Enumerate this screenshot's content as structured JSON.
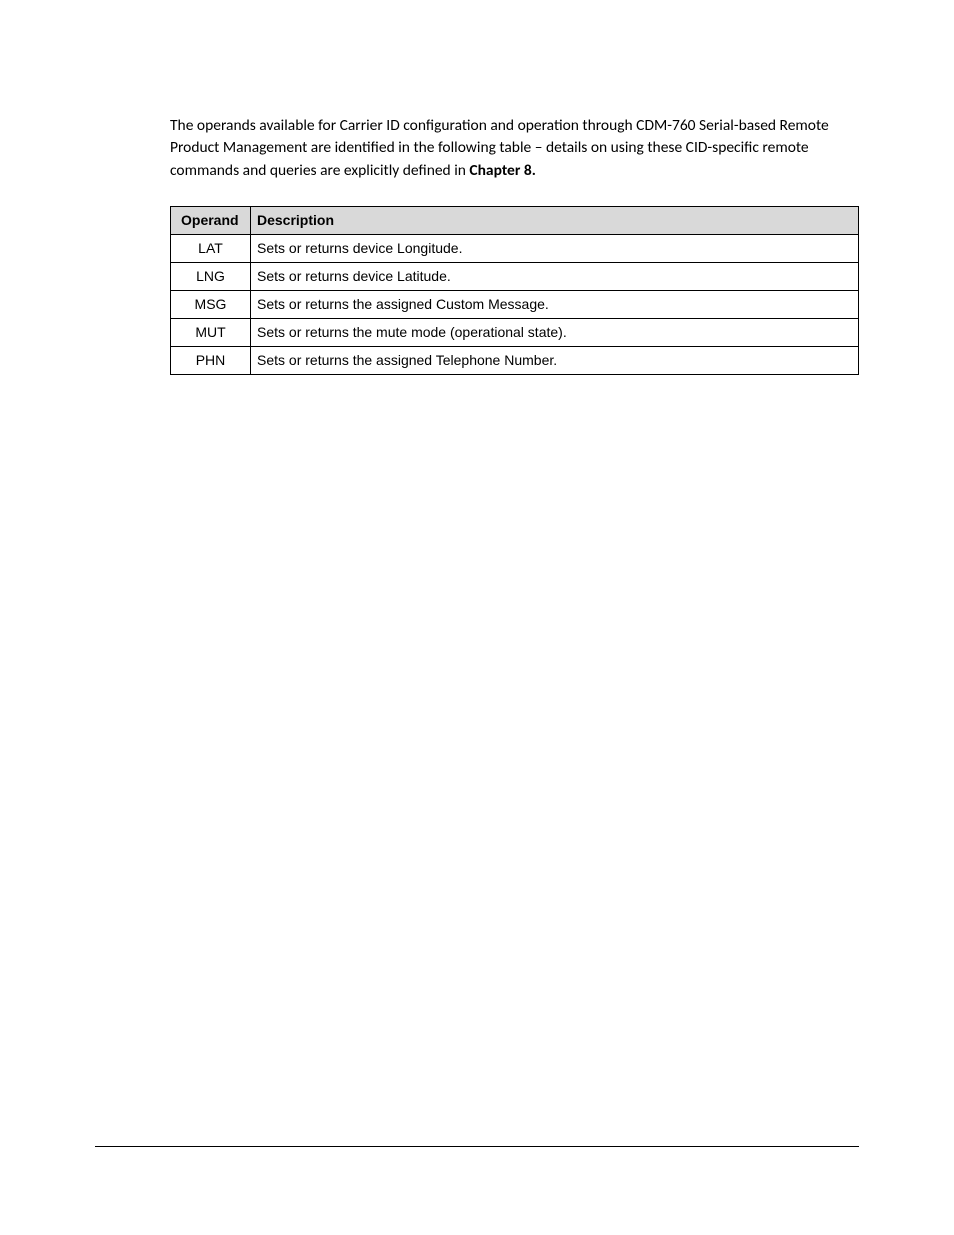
{
  "paragraph": {
    "text_part1": "The operands available for Carrier ID configuration and operation through CDM-760 Serial-based Remote Product Management are identified in the following table – details on using these CID-specific remote commands and queries are explicitly defined in ",
    "bold_part": "Chapter 8."
  },
  "table": {
    "header": {
      "operand": "Operand",
      "description": "Description"
    },
    "rows": [
      {
        "operand": "LAT",
        "description": "Sets or returns device Longitude."
      },
      {
        "operand": "LNG",
        "description": "Sets or returns device Latitude."
      },
      {
        "operand": "MSG",
        "description": "Sets or returns the assigned Custom Message."
      },
      {
        "operand": "MUT",
        "description": "Sets or returns the mute mode (operational state)."
      },
      {
        "operand": "PHN",
        "description": "Sets or returns the assigned Telephone Number."
      }
    ],
    "styles": {
      "header_bg": "#d9d9d9",
      "border_color": "#000000",
      "operand_col_width": 80,
      "font_size": 14
    }
  }
}
